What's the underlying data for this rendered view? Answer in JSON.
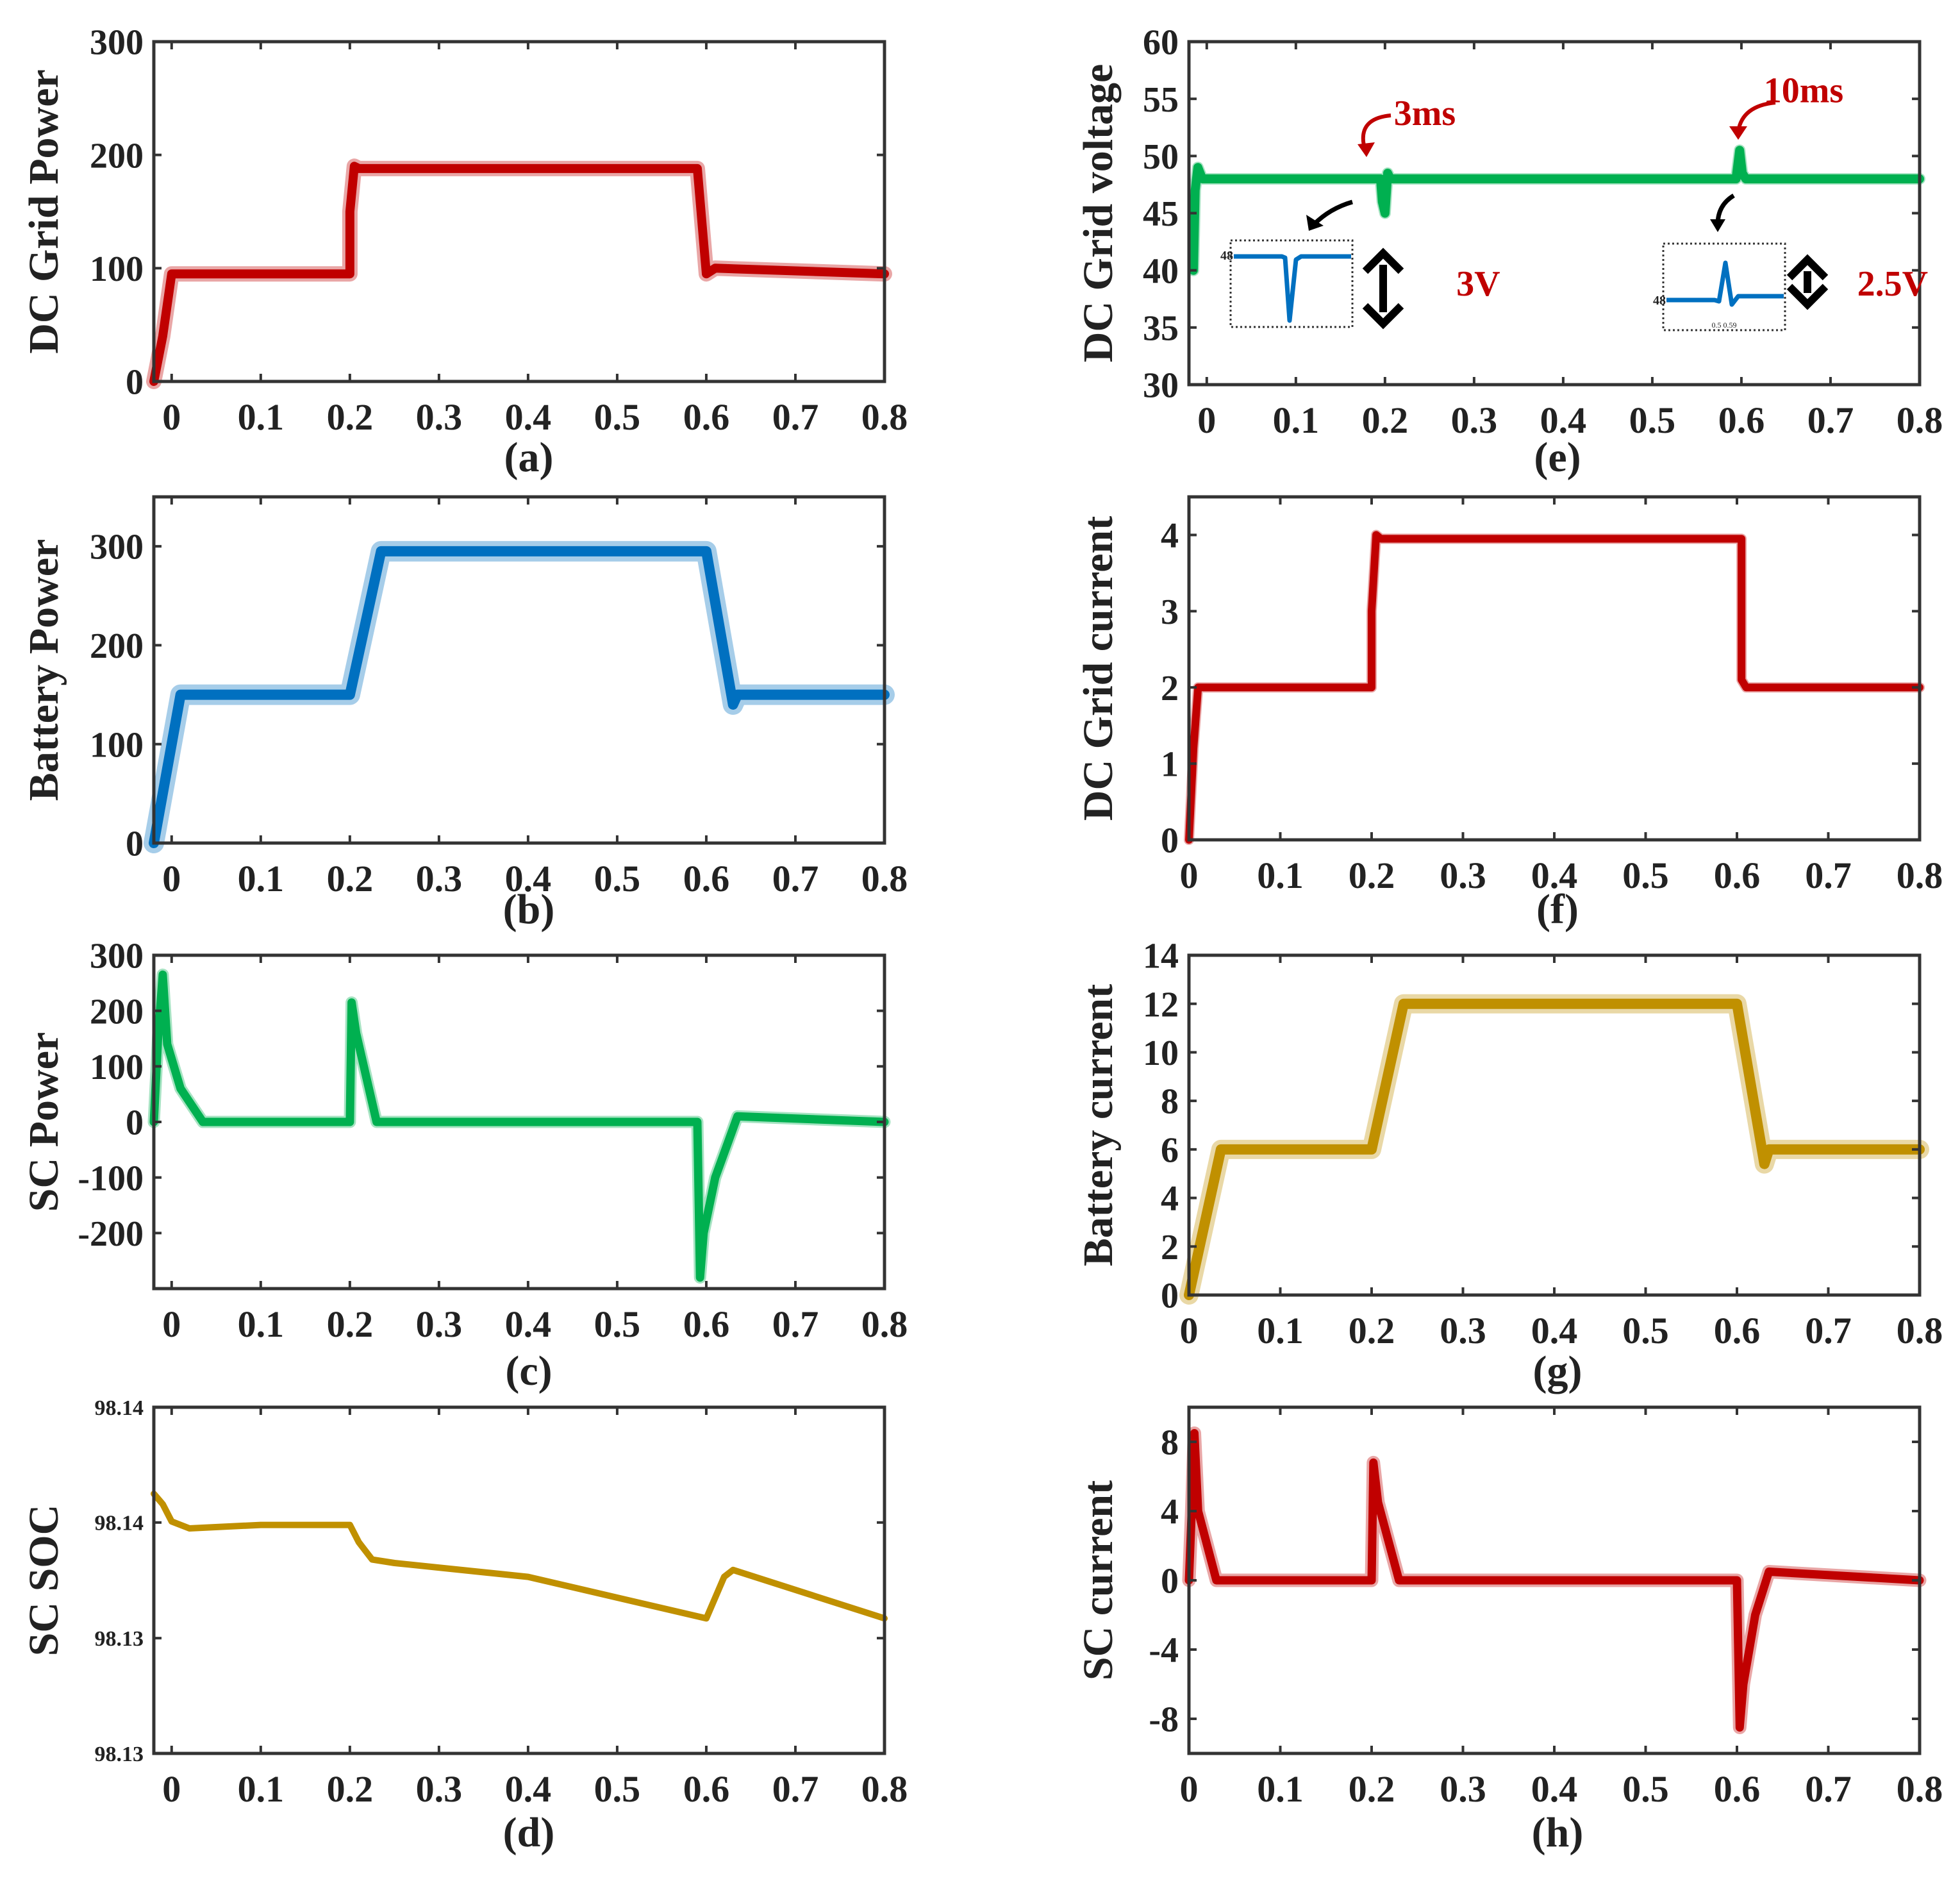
{
  "x_ticks": [
    "0",
    "0.1",
    "0.2",
    "0.3",
    "0.4",
    "0.5",
    "0.6",
    "0.7",
    "0.8"
  ],
  "colors": {
    "red": "#C00000",
    "blue": "#0070C0",
    "green": "#00B050",
    "gold": "#C09000",
    "axis": "#333333"
  },
  "chart_data": [
    {
      "id": "a",
      "type": "line",
      "caption": "(a)",
      "ylabel": "DC Grid Power",
      "xlim": [
        -0.02,
        0.8
      ],
      "ylim": [
        0,
        300
      ],
      "yticks": [
        "0",
        "100",
        "200",
        "300"
      ],
      "color": "#C00000",
      "stroke": 14,
      "band": 10,
      "x": [
        -0.02,
        -0.01,
        0.0,
        0.2,
        0.2,
        0.205,
        0.21,
        0.59,
        0.6,
        0.61,
        0.8
      ],
      "y": [
        0,
        40,
        95,
        95,
        150,
        190,
        188,
        188,
        95,
        100,
        95
      ],
      "series": [
        {
          "name": "DC Grid Power"
        }
      ]
    },
    {
      "id": "b",
      "type": "line",
      "caption": "(b)",
      "ylabel": "Battery Power",
      "xlim": [
        -0.02,
        0.8
      ],
      "ylim": [
        0,
        350
      ],
      "yticks": [
        "0",
        "100",
        "200",
        "300"
      ],
      "color": "#0070C0",
      "stroke": 16,
      "band": 16,
      "x": [
        -0.02,
        0.01,
        0.2,
        0.235,
        0.6,
        0.63,
        0.635,
        0.8
      ],
      "y": [
        0,
        150,
        150,
        295,
        295,
        140,
        150,
        150
      ],
      "series": [
        {
          "name": "Battery Power"
        }
      ]
    },
    {
      "id": "c",
      "type": "line",
      "caption": "(c)",
      "ylabel": "SC Power",
      "xlim": [
        -0.02,
        0.8
      ],
      "ylim": [
        -300,
        300
      ],
      "yticks": [
        "300",
        "200",
        "100",
        "0",
        "-100",
        "-200"
      ],
      "color": "#00B050",
      "stroke": 13,
      "band": 6,
      "x": [
        -0.02,
        -0.015,
        -0.01,
        -0.005,
        0.01,
        0.035,
        0.2,
        0.2,
        0.202,
        0.207,
        0.23,
        0.59,
        0.593,
        0.597,
        0.61,
        0.635,
        0.8
      ],
      "y": [
        0,
        160,
        265,
        140,
        60,
        0,
        0,
        0,
        215,
        160,
        0,
        0,
        -280,
        -200,
        -100,
        10,
        0
      ],
      "series": [
        {
          "name": "SC Power"
        }
      ]
    },
    {
      "id": "d",
      "type": "line",
      "caption": "(d)",
      "ylabel": "SC SOC",
      "xlim": [
        -0.02,
        0.8
      ],
      "ylim": [
        0,
        1
      ],
      "ytick_positions": [
        0,
        0.333,
        0.667,
        1
      ],
      "yticks": [
        "98.13",
        "98.13",
        "98.14",
        "98.14"
      ],
      "color": "#C09000",
      "stroke": 10,
      "band": 0,
      "x": [
        -0.02,
        -0.01,
        0.0,
        0.02,
        0.1,
        0.2,
        0.21,
        0.225,
        0.25,
        0.4,
        0.6,
        0.61,
        0.62,
        0.63,
        0.8
      ],
      "y": [
        0.75,
        0.72,
        0.67,
        0.65,
        0.66,
        0.66,
        0.61,
        0.56,
        0.55,
        0.51,
        0.39,
        0.45,
        0.51,
        0.53,
        0.39
      ],
      "series": [
        {
          "name": "SC SOC"
        }
      ]
    },
    {
      "id": "e",
      "type": "line",
      "caption": "(e)",
      "ylabel": "DC Grid voltage",
      "xlim": [
        -0.02,
        0.8
      ],
      "ylim": [
        30,
        60
      ],
      "yticks": [
        "30",
        "35",
        "40",
        "45",
        "50",
        "55",
        "60"
      ],
      "color": "#00B050",
      "stroke": 14,
      "band": 4,
      "x": [
        -0.015,
        -0.013,
        -0.01,
        -0.005,
        0.0,
        0.195,
        0.197,
        0.2,
        0.203,
        0.206,
        0.59,
        0.594,
        0.598,
        0.601,
        0.605,
        0.61,
        0.8
      ],
      "y": [
        40,
        47,
        49,
        48,
        48,
        48,
        46,
        45,
        48.5,
        48,
        48,
        48,
        50.5,
        48.5,
        48,
        48,
        48
      ],
      "annotations": [
        {
          "text": "3ms",
          "x": 0.21,
          "y": 52.7
        },
        {
          "text": "10ms",
          "x": 0.625,
          "y": 54.7
        },
        {
          "text": "3V",
          "x": 0.28,
          "y": 37.8
        },
        {
          "text": "2.5V",
          "x": 0.73,
          "y": 37.8
        }
      ],
      "insets": [
        {
          "id": "inset-1",
          "label": "48",
          "xlabel": ""
        },
        {
          "id": "inset-2",
          "label": "48",
          "xlabel": "0.5 0.59"
        }
      ],
      "series": [
        {
          "name": "DC Grid voltage"
        }
      ]
    },
    {
      "id": "f",
      "type": "line",
      "caption": "(f)",
      "ylabel": "DC Grid current",
      "xlim": [
        0,
        0.8
      ],
      "ylim": [
        0,
        4.5
      ],
      "yticks": [
        "0",
        "1",
        "2",
        "3",
        "4"
      ],
      "color": "#C00000",
      "stroke": 12,
      "band": 4,
      "x": [
        0,
        0.005,
        0.01,
        0.2,
        0.2,
        0.205,
        0.21,
        0.605,
        0.605,
        0.61,
        0.8
      ],
      "y": [
        0,
        1.2,
        2,
        2,
        3,
        4,
        3.95,
        3.95,
        2.1,
        2,
        2
      ],
      "series": [
        {
          "name": "DC Grid current"
        }
      ]
    },
    {
      "id": "g",
      "type": "line",
      "caption": "(g)",
      "ylabel": "Battery current",
      "xlim": [
        0,
        0.8
      ],
      "ylim": [
        0,
        14
      ],
      "yticks": [
        "0",
        "2",
        "4",
        "6",
        "8",
        "10",
        "12",
        "14"
      ],
      "color": "#C09000",
      "stroke": 16,
      "band": 14,
      "x": [
        0,
        0.035,
        0.2,
        0.235,
        0.6,
        0.63,
        0.635,
        0.8
      ],
      "y": [
        0,
        6,
        6,
        12,
        12,
        5.4,
        6,
        6
      ],
      "series": [
        {
          "name": "Battery current"
        }
      ]
    },
    {
      "id": "h",
      "type": "line",
      "caption": "(h)",
      "ylabel": "SC current",
      "xlim": [
        0,
        0.8
      ],
      "ylim": [
        -10,
        10
      ],
      "yticks": [
        "-8",
        "-4",
        "0",
        "4",
        "8"
      ],
      "color": "#C00000",
      "stroke": 13,
      "band": 8,
      "x": [
        0,
        0.003,
        0.006,
        0.01,
        0.03,
        0.2,
        0.2,
        0.202,
        0.207,
        0.23,
        0.6,
        0.603,
        0.607,
        0.62,
        0.635,
        0.8
      ],
      "y": [
        0,
        4,
        8.5,
        4,
        0,
        0,
        0,
        6.8,
        4.5,
        0,
        0,
        -8.5,
        -6,
        -2,
        0.5,
        0
      ],
      "series": [
        {
          "name": "SC current"
        }
      ]
    }
  ]
}
